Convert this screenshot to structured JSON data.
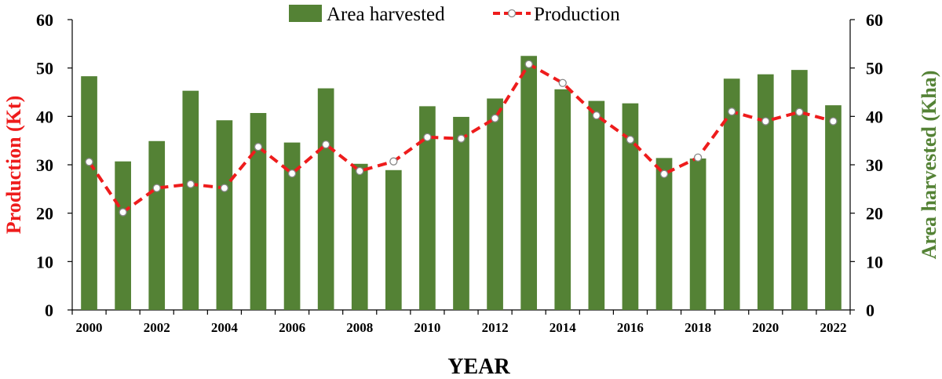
{
  "chart_data": {
    "type": "bar+line",
    "xlabel": "YEAR",
    "x": [
      2000,
      2001,
      2002,
      2003,
      2004,
      2005,
      2006,
      2007,
      2008,
      2009,
      2010,
      2011,
      2012,
      2013,
      2014,
      2015,
      2016,
      2017,
      2018,
      2019,
      2020,
      2021,
      2022
    ],
    "x_tick_labels": [
      "2000",
      "2002",
      "2004",
      "2006",
      "2008",
      "2010",
      "2012",
      "2014",
      "2016",
      "2018",
      "2020",
      "2022"
    ],
    "y_left": {
      "label": "Production (Kt)",
      "lim": [
        0,
        60
      ],
      "ticks": [
        "0",
        "10",
        "20",
        "30",
        "40",
        "50",
        "60"
      ],
      "color": "#ee1c1c"
    },
    "y_right": {
      "label": "Area harvested (Kha)",
      "lim": [
        0,
        60
      ],
      "ticks": [
        "0",
        "10",
        "20",
        "30",
        "40",
        "50",
        "60"
      ],
      "color": "#548235"
    },
    "series": [
      {
        "name": "Area harvested",
        "kind": "bar",
        "axis": "right",
        "color": "#548235",
        "values": [
          48.3,
          30.7,
          34.9,
          45.3,
          39.2,
          40.7,
          34.6,
          45.8,
          30.2,
          28.9,
          42.1,
          39.9,
          43.7,
          52.5,
          45.6,
          43.2,
          42.7,
          31.4,
          31.3,
          47.8,
          48.7,
          49.6,
          42.3
        ]
      },
      {
        "name": "Production",
        "kind": "line",
        "axis": "left",
        "color": "#ee1c1c",
        "values": [
          30.6,
          20.2,
          25.2,
          26.0,
          25.2,
          33.7,
          28.2,
          34.2,
          28.7,
          30.7,
          35.7,
          35.4,
          39.6,
          50.8,
          46.9,
          40.2,
          35.2,
          28.1,
          31.5,
          41.0,
          39.0,
          40.9,
          39.0
        ]
      }
    ],
    "legend": {
      "position": "top",
      "entries": [
        "Area harvested",
        "Production"
      ]
    }
  }
}
